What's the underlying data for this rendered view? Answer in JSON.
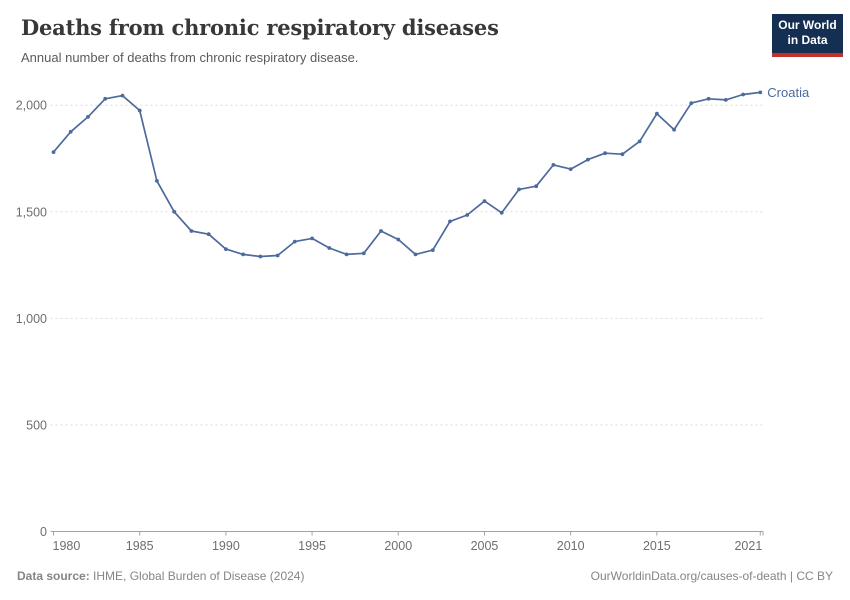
{
  "header": {
    "title": "Deaths from chronic respiratory diseases",
    "subtitle": "Annual number of deaths from chronic respiratory disease.",
    "logo": {
      "line1": "Our World",
      "line2": "in Data"
    }
  },
  "chart_data": {
    "type": "line",
    "title": "Deaths from chronic respiratory diseases",
    "xlabel": "",
    "ylabel": "",
    "xlim": [
      1980,
      2021
    ],
    "ylim": [
      0,
      2000
    ],
    "grid": "horizontal-dashed",
    "legend": "end-of-line-label",
    "x_ticks": {
      "values": [
        1980,
        1985,
        1990,
        1995,
        2000,
        2005,
        2010,
        2015,
        2021
      ],
      "labels": [
        "1980",
        "1985",
        "1990",
        "1995",
        "2000",
        "2005",
        "2010",
        "2015",
        "2021"
      ]
    },
    "y_ticks": {
      "values": [
        0,
        500,
        1000,
        1500,
        2000
      ],
      "labels": [
        "0",
        "500",
        "1,000",
        "1,500",
        "2,000"
      ]
    },
    "series": [
      {
        "name": "Croatia",
        "color": "#4C6A9C",
        "x": [
          1980,
          1981,
          1982,
          1983,
          1984,
          1985,
          1986,
          1987,
          1988,
          1989,
          1990,
          1991,
          1992,
          1993,
          1994,
          1995,
          1996,
          1997,
          1998,
          1999,
          2000,
          2001,
          2002,
          2003,
          2004,
          2005,
          2006,
          2007,
          2008,
          2009,
          2010,
          2011,
          2012,
          2013,
          2014,
          2015,
          2016,
          2017,
          2018,
          2019,
          2020,
          2021
        ],
        "values": [
          1780,
          1875,
          1945,
          2030,
          2045,
          1975,
          1645,
          1500,
          1410,
          1395,
          1325,
          1300,
          1290,
          1295,
          1360,
          1375,
          1330,
          1300,
          1305,
          1410,
          1370,
          1300,
          1320,
          1455,
          1485,
          1550,
          1495,
          1605,
          1620,
          1720,
          1700,
          1745,
          1775,
          1770,
          1830,
          1960,
          1885,
          2010,
          2030,
          2025,
          2050,
          2060
        ]
      }
    ],
    "colors": {
      "line": "#4C6A9C",
      "grid": "#dcdcdc",
      "axis": "#a3a3a3",
      "tick_label": "#6e6e6e"
    }
  },
  "footer": {
    "source_label": "Data source:",
    "source_text": " IHME, Global Burden of Disease (2024)",
    "credit": "OurWorldinData.org/causes-of-death | CC BY"
  }
}
